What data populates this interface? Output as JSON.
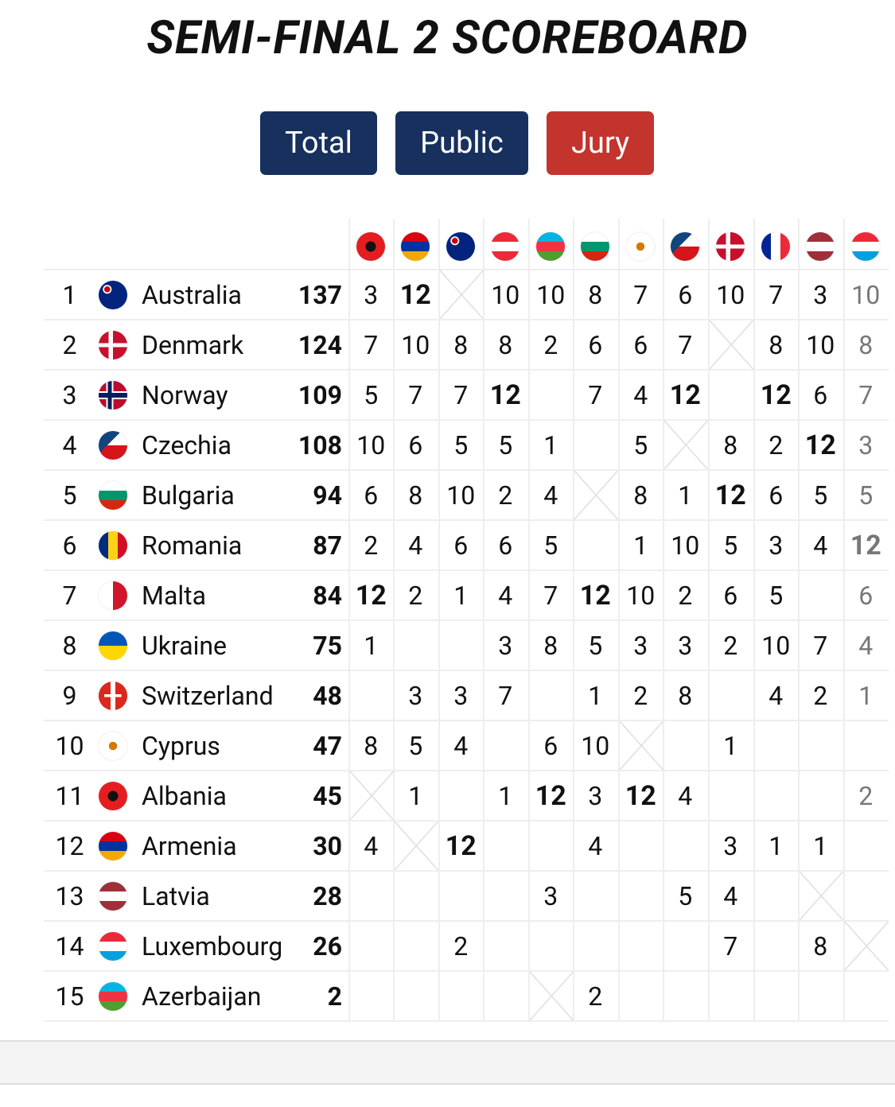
{
  "header": {
    "title": "SEMI-FINAL 2 SCOREBOARD"
  },
  "tabs": [
    "Total",
    "Public",
    "Jury"
  ],
  "table": {
    "rows": [
      {
        "rank": 1,
        "country": "Australia",
        "total": 137,
        "points": [
          3,
          12,
          null,
          10,
          10,
          8,
          7,
          6,
          10,
          7,
          3,
          10
        ]
      },
      {
        "rank": 2,
        "country": "Denmark",
        "total": 124,
        "points": [
          7,
          10,
          8,
          8,
          2,
          6,
          6,
          7,
          null,
          8,
          10,
          8
        ]
      },
      {
        "rank": 3,
        "country": "Norway",
        "total": 109,
        "points": [
          5,
          7,
          7,
          12,
          null,
          7,
          4,
          12,
          null,
          12,
          6,
          7
        ]
      },
      {
        "rank": 4,
        "country": "Czechia",
        "total": 108,
        "points": [
          10,
          6,
          5,
          5,
          1,
          null,
          5,
          null,
          8,
          2,
          12,
          3
        ]
      },
      {
        "rank": 5,
        "country": "Bulgaria",
        "total": 94,
        "points": [
          6,
          8,
          10,
          2,
          4,
          null,
          8,
          1,
          12,
          6,
          5,
          5
        ]
      },
      {
        "rank": 6,
        "country": "Romania",
        "total": 87,
        "points": [
          2,
          4,
          6,
          6,
          5,
          null,
          1,
          10,
          5,
          3,
          4,
          12
        ]
      },
      {
        "rank": 7,
        "country": "Malta",
        "total": 84,
        "points": [
          12,
          2,
          1,
          4,
          7,
          12,
          10,
          2,
          6,
          5,
          null,
          6
        ]
      },
      {
        "rank": 8,
        "country": "Ukraine",
        "total": 75,
        "points": [
          1,
          null,
          null,
          3,
          8,
          5,
          3,
          3,
          2,
          10,
          7,
          4
        ]
      },
      {
        "rank": 9,
        "country": "Switzerland",
        "total": 48,
        "points": [
          null,
          3,
          3,
          7,
          null,
          1,
          2,
          8,
          null,
          4,
          2,
          1
        ]
      },
      {
        "rank": 10,
        "country": "Cyprus",
        "total": 47,
        "points": [
          8,
          5,
          4,
          null,
          6,
          10,
          null,
          null,
          1,
          null,
          null,
          null
        ]
      },
      {
        "rank": 11,
        "country": "Albania",
        "total": 45,
        "points": [
          null,
          1,
          null,
          1,
          12,
          3,
          12,
          4,
          null,
          null,
          null,
          2
        ]
      },
      {
        "rank": 12,
        "country": "Armenia",
        "total": 30,
        "points": [
          4,
          null,
          12,
          null,
          null,
          4,
          null,
          null,
          3,
          1,
          1,
          null
        ]
      },
      {
        "rank": 13,
        "country": "Latvia",
        "total": 28,
        "points": [
          null,
          null,
          null,
          null,
          3,
          null,
          null,
          5,
          4,
          null,
          null,
          null
        ]
      },
      {
        "rank": 14,
        "country": "Luxembourg",
        "total": 26,
        "points": [
          null,
          null,
          2,
          null,
          null,
          null,
          null,
          null,
          7,
          null,
          8,
          null
        ]
      },
      {
        "rank": 15,
        "country": "Azerbaijan",
        "total": 2,
        "points": [
          null,
          null,
          null,
          null,
          null,
          2,
          null,
          null,
          null,
          null,
          null,
          null
        ]
      }
    ]
  }
}
